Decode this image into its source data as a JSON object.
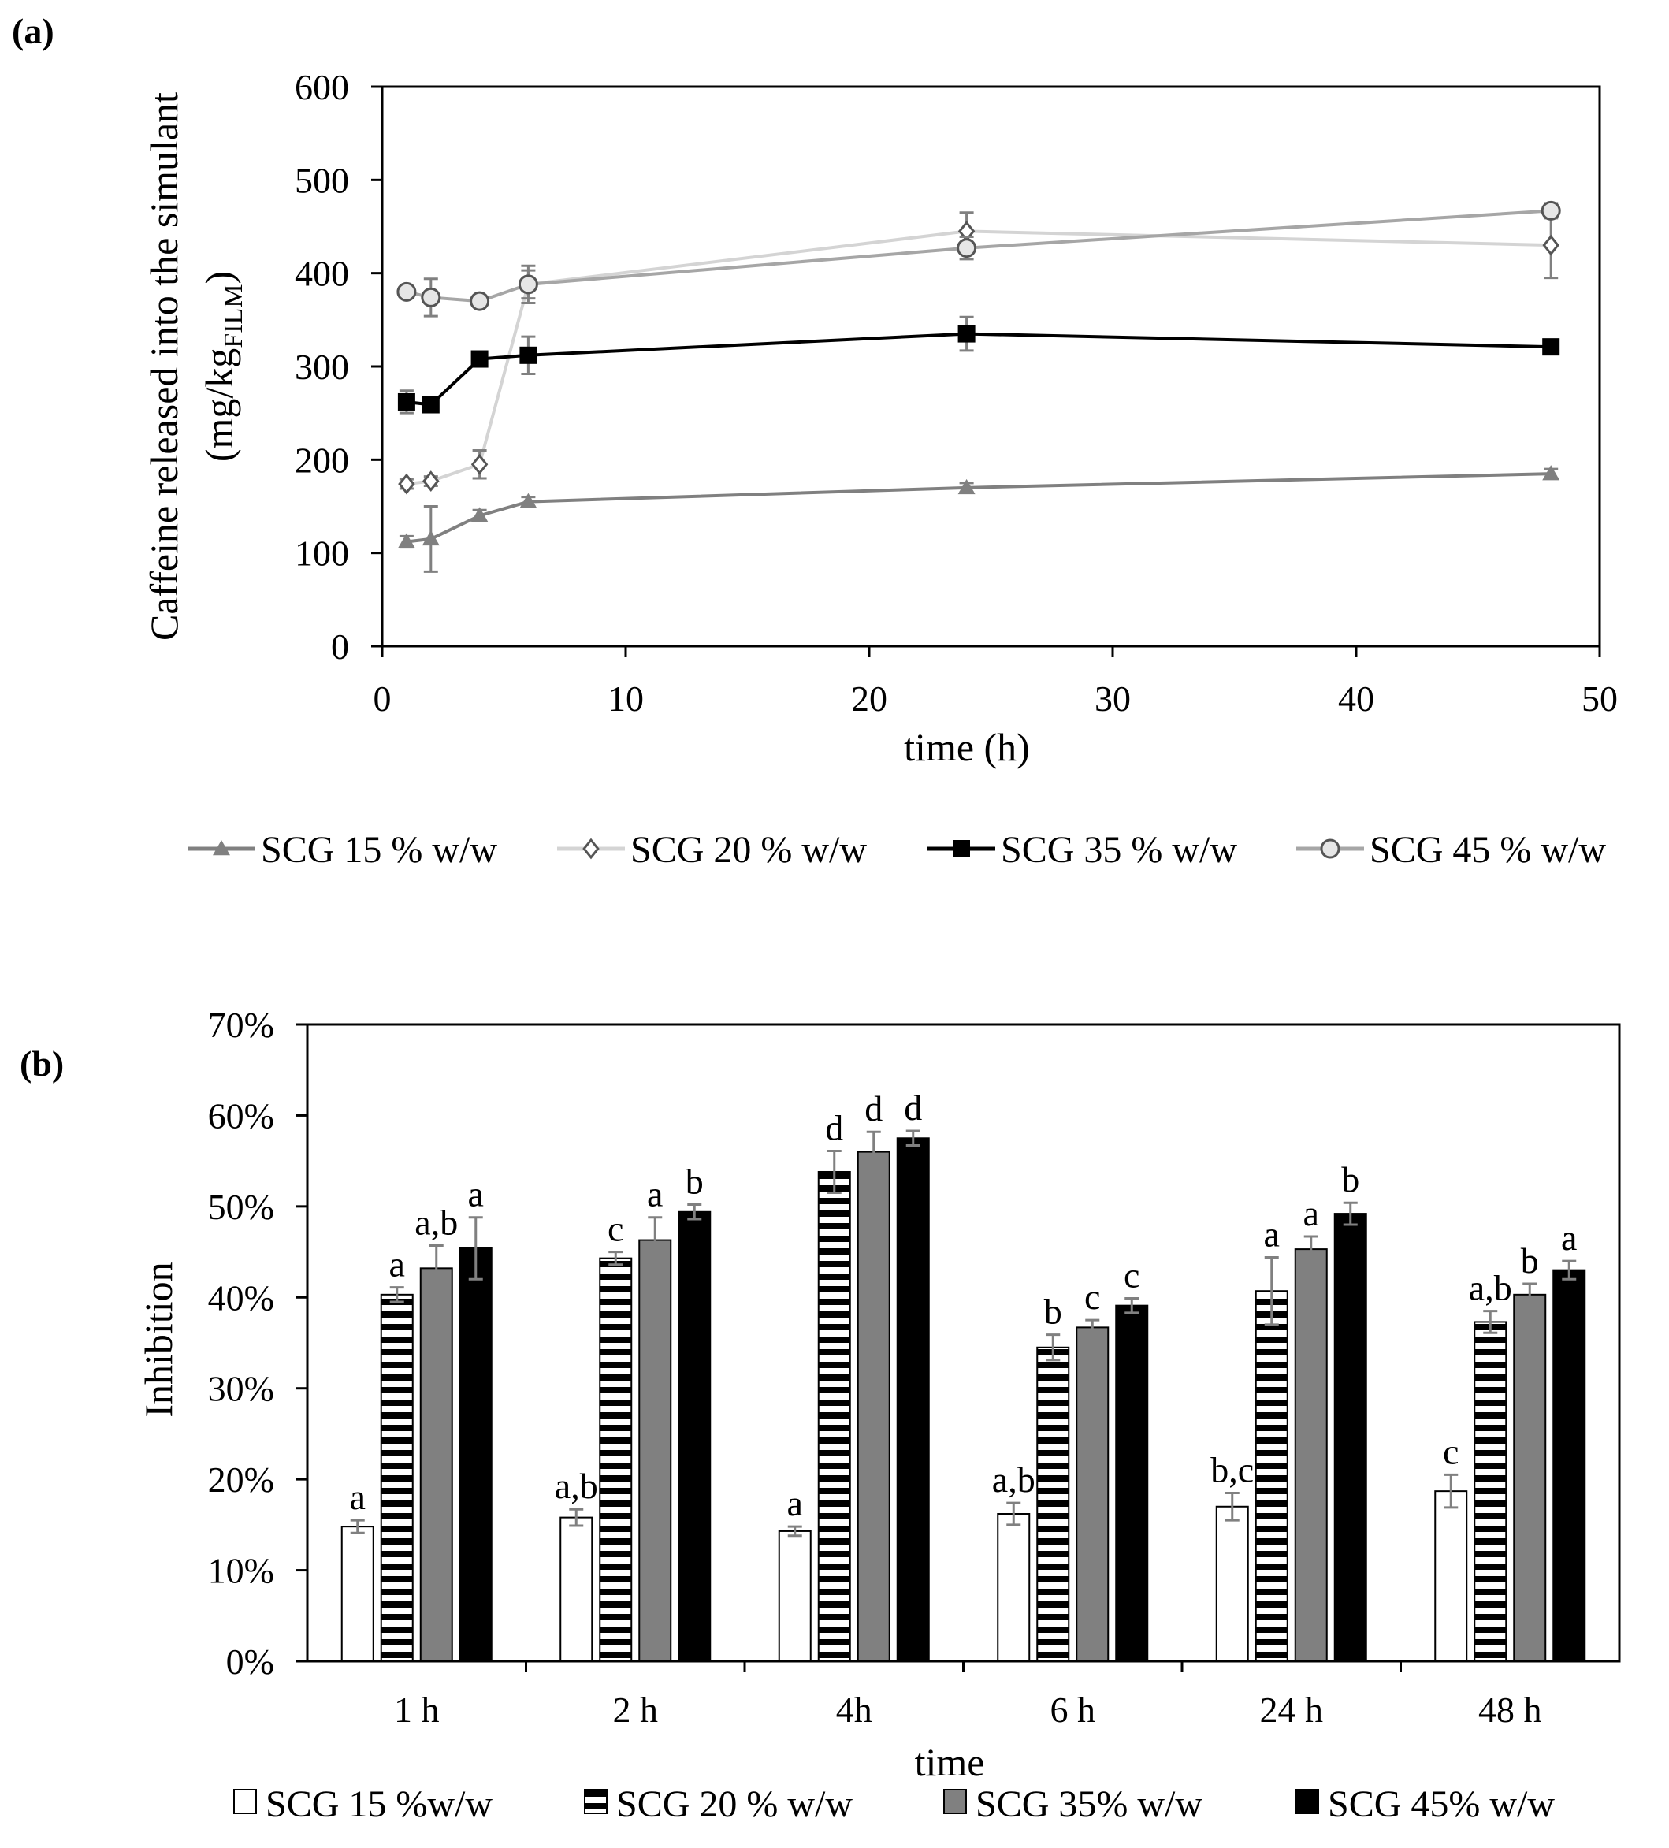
{
  "colors": {
    "scg15": "#808080",
    "scg20": "#d4d4d4",
    "scg35": "#000000",
    "scg45": "#a6a6a6",
    "bar15": "#ffffff",
    "bar35": "#808080",
    "bar45": "#000000",
    "error": "#808080"
  },
  "chart_data": [
    {
      "id": "a",
      "panel_label": "(a)",
      "type": "line",
      "xlabel": "time (h)",
      "ylabel_main": "Caffeine released into the simulant",
      "ylabel_unit_prefix": "(mg/kg",
      "ylabel_unit_sub": "FILM",
      "ylabel_unit_suffix": ")",
      "xlim": [
        0,
        50
      ],
      "ylim": [
        0,
        600
      ],
      "xticks": [
        0,
        10,
        20,
        30,
        40,
        50
      ],
      "yticks": [
        0,
        100,
        200,
        300,
        400,
        500,
        600
      ],
      "grid": false,
      "legend_position": "bottom",
      "series": [
        {
          "name": "SCG 15 % w/w",
          "marker": "triangle",
          "color_key": "scg15",
          "x": [
            1,
            2,
            4,
            6,
            24,
            48
          ],
          "y": [
            112,
            115,
            140,
            155,
            170,
            185
          ],
          "err": [
            6,
            35,
            6,
            5,
            5,
            5
          ]
        },
        {
          "name": "SCG 20 % w/w",
          "marker": "diamond",
          "color_key": "scg20",
          "x": [
            1,
            2,
            4,
            6,
            24,
            48
          ],
          "y": [
            174,
            177,
            195,
            388,
            445,
            430
          ],
          "err": [
            5,
            5,
            15,
            20,
            20,
            35
          ]
        },
        {
          "name": "SCG 35 % w/w",
          "marker": "square",
          "color_key": "scg35",
          "x": [
            1,
            2,
            4,
            6,
            24,
            48
          ],
          "y": [
            262,
            259,
            308,
            312,
            335,
            321
          ],
          "err": [
            12,
            5,
            5,
            20,
            18,
            5
          ]
        },
        {
          "name": "SCG 45 % w/w",
          "marker": "circle",
          "color_key": "scg45",
          "x": [
            1,
            2,
            4,
            6,
            24,
            48
          ],
          "y": [
            380,
            374,
            370,
            388,
            427,
            467
          ],
          "err": [
            5,
            20,
            5,
            15,
            12,
            8
          ]
        }
      ]
    },
    {
      "id": "b",
      "panel_label": "(b)",
      "type": "bar",
      "xlabel": "time",
      "ylabel": "Inhibition",
      "ylim": [
        0,
        70
      ],
      "yticks": [
        0,
        10,
        20,
        30,
        40,
        50,
        60,
        70
      ],
      "ytick_labels": [
        "0%",
        "10%",
        "20%",
        "30%",
        "40%",
        "50%",
        "60%",
        "70%"
      ],
      "categories": [
        "1 h",
        "2 h",
        "4h",
        "6 h",
        "24 h",
        "48 h"
      ],
      "grid": false,
      "legend_position": "bottom",
      "series": [
        {
          "name": "SCG 15 %w/w",
          "fill": "white",
          "color_key": "bar15",
          "values": [
            14.8,
            15.8,
            14.3,
            16.2,
            17.0,
            18.7
          ],
          "err": [
            0.7,
            0.9,
            0.5,
            1.2,
            1.5,
            1.8
          ],
          "labels": [
            "a",
            "a,b",
            "a",
            "a,b",
            "b,c",
            "c"
          ]
        },
        {
          "name": "SCG 20 % w/w",
          "fill": "stripes",
          "color_key": "scg35",
          "values": [
            40.3,
            44.3,
            53.8,
            34.5,
            40.7,
            37.3
          ],
          "err": [
            0.8,
            0.7,
            2.3,
            1.4,
            3.7,
            1.2
          ],
          "labels": [
            "a",
            "c",
            "d",
            "b",
            "a",
            "a,b"
          ]
        },
        {
          "name": "SCG 35% w/w",
          "fill": "gray",
          "color_key": "bar35",
          "values": [
            43.2,
            46.3,
            56.0,
            36.7,
            45.3,
            40.3
          ],
          "err": [
            2.5,
            2.5,
            2.2,
            0.8,
            1.4,
            1.2
          ],
          "labels": [
            "a,b",
            "a",
            "d",
            "c",
            "a",
            "b"
          ]
        },
        {
          "name": "SCG 45% w/w",
          "fill": "black",
          "color_key": "bar45",
          "values": [
            45.4,
            49.4,
            57.5,
            39.1,
            49.2,
            43.0
          ],
          "err": [
            3.4,
            0.8,
            0.8,
            0.8,
            1.2,
            1.0
          ],
          "labels": [
            "a",
            "b",
            "d",
            "c",
            "b",
            "a"
          ]
        }
      ]
    }
  ]
}
